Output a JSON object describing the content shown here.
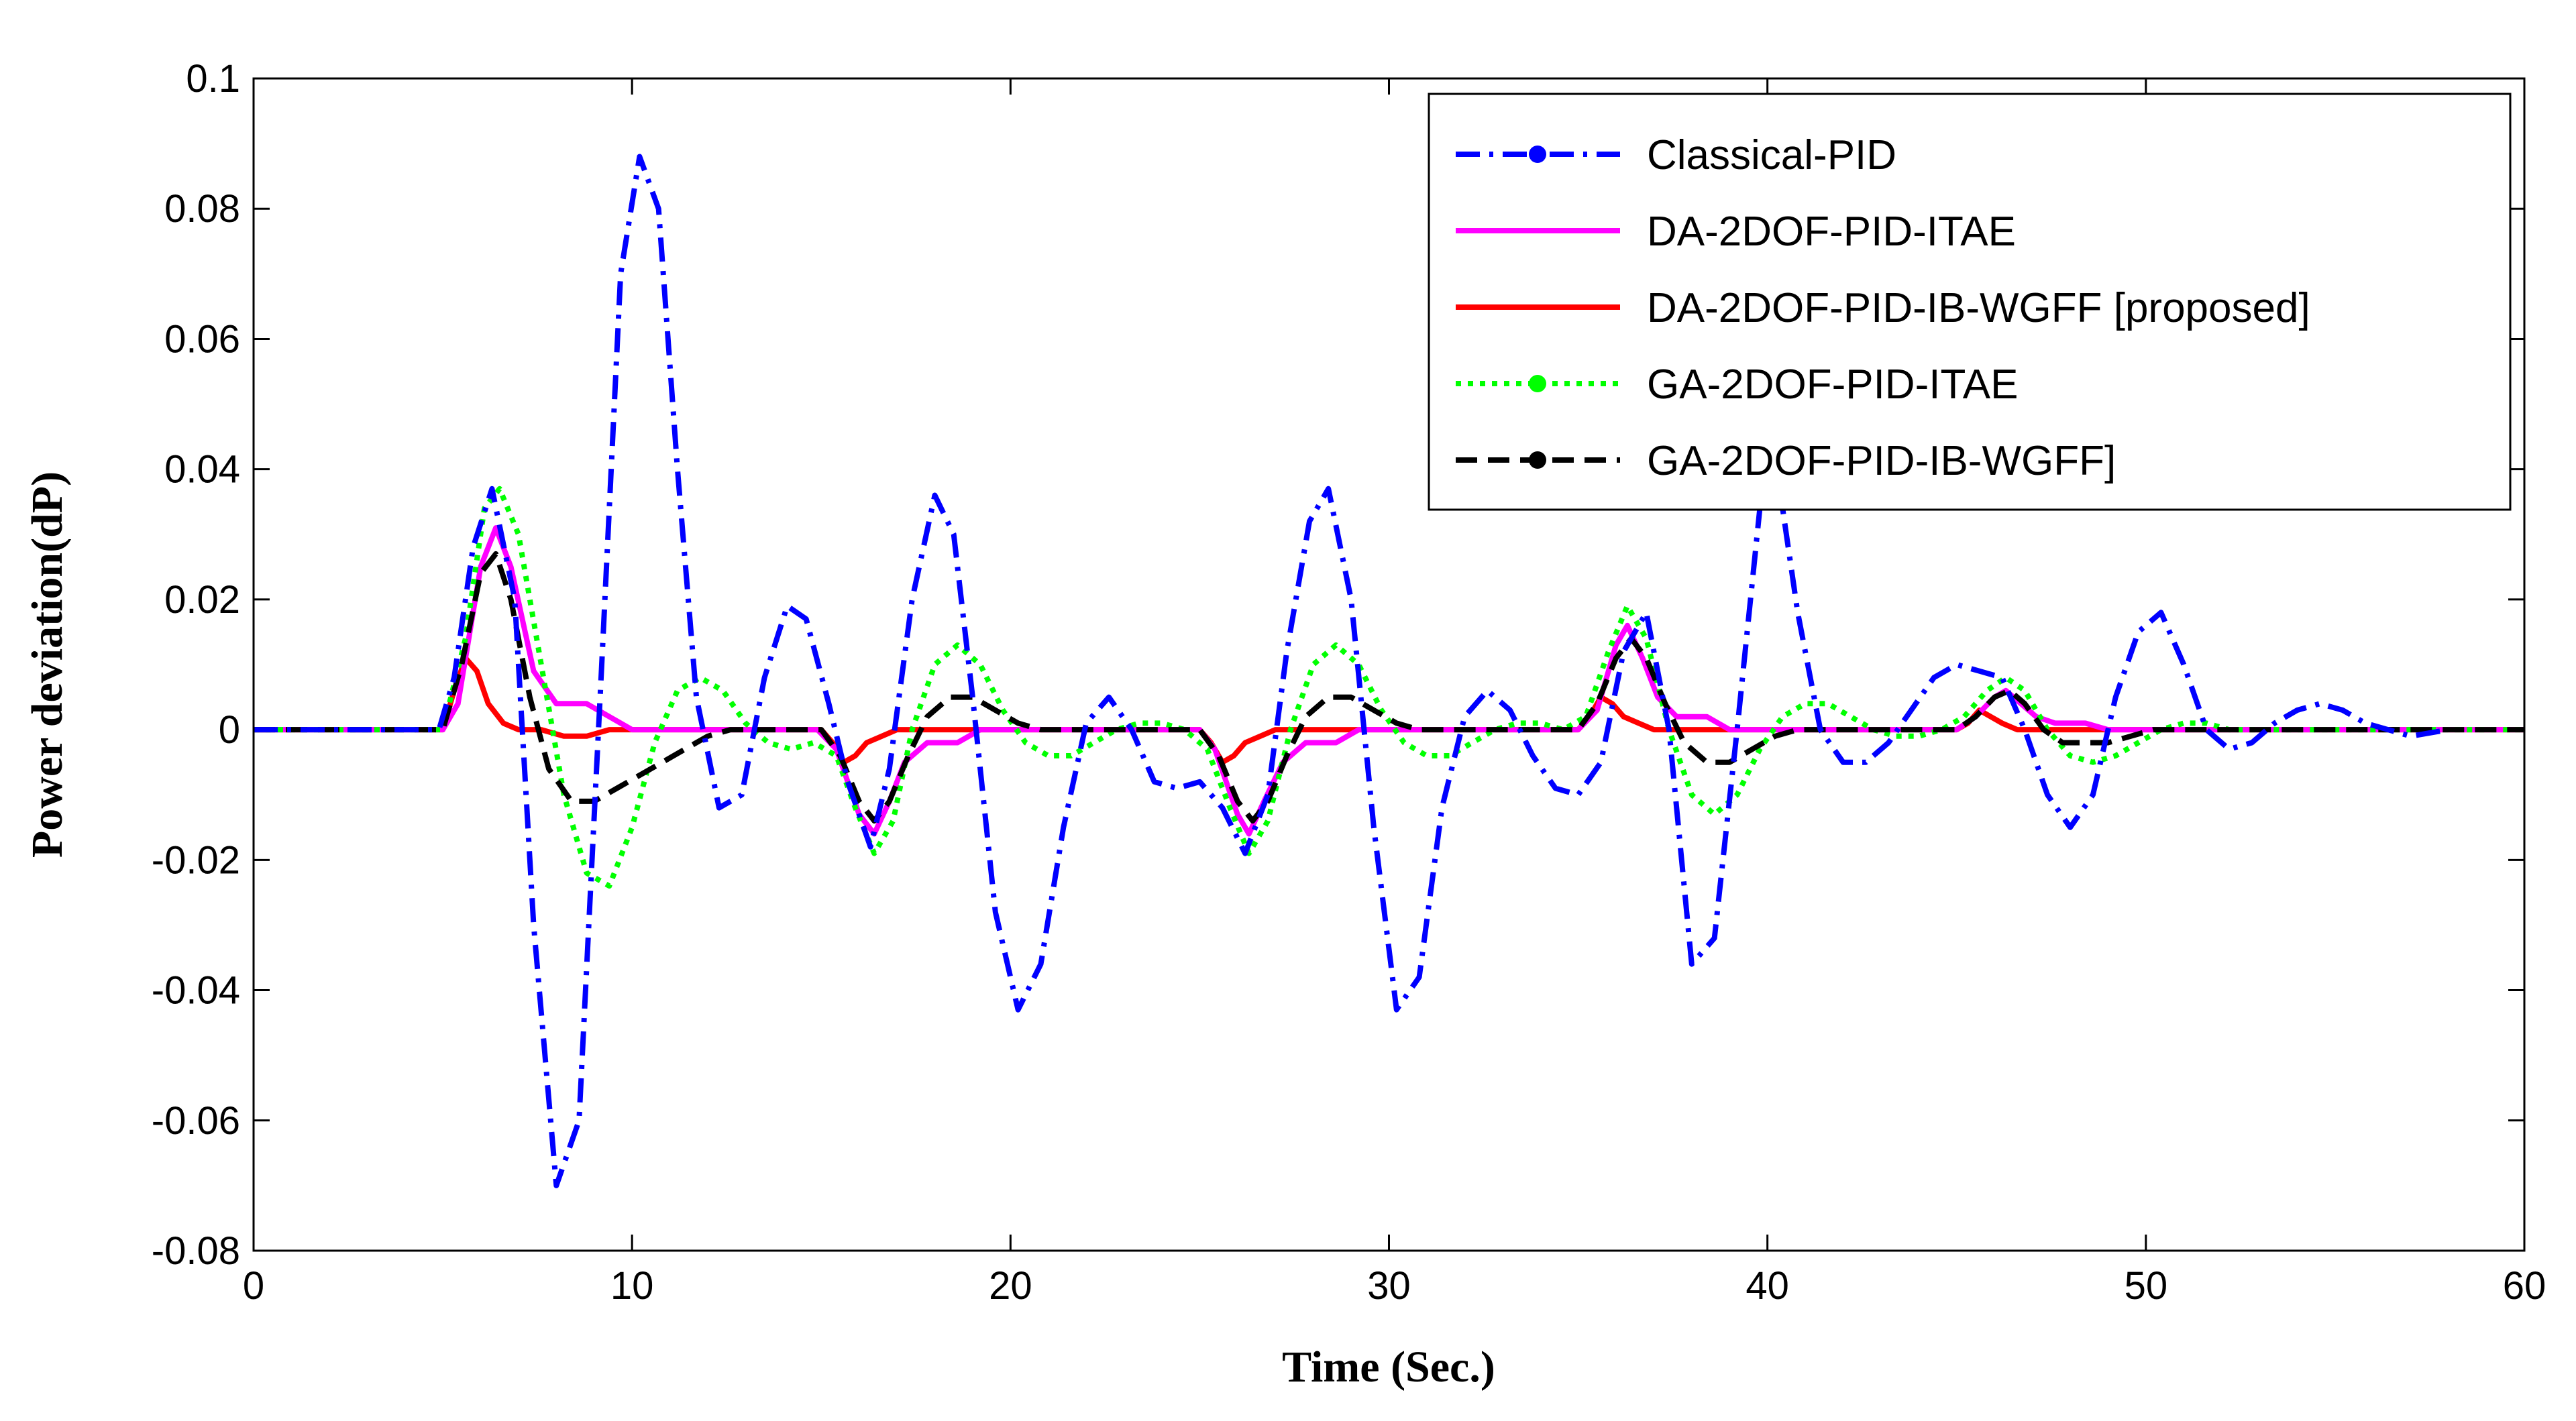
{
  "chart_data": {
    "type": "line",
    "title": "",
    "xlabel": "Time (Sec.)",
    "ylabel": "Power deviation(dP)",
    "xlim": [
      0,
      60
    ],
    "ylim": [
      -0.08,
      0.1
    ],
    "xticks": [
      0,
      10,
      20,
      30,
      40,
      50,
      60
    ],
    "xtick_labels": [
      "0",
      "10",
      "20",
      "30",
      "40",
      "50",
      "60"
    ],
    "yticks": [
      -0.08,
      -0.06,
      -0.04,
      -0.02,
      0,
      0.02,
      0.04,
      0.06,
      0.08,
      0.1
    ],
    "ytick_labels": [
      "-0.08",
      "-0.06",
      "-0.04",
      "-0.02",
      "0",
      "0.02",
      "0.04",
      "0.06",
      "0.08",
      "0.1"
    ],
    "grid": false,
    "legend_position": "top-right",
    "series": [
      {
        "name": "Classical-PID",
        "color": "#0000ff",
        "style": "dashdot",
        "marker": "dot",
        "x": [
          0,
          4.9,
          5.3,
          5.8,
          6.3,
          6.9,
          7.4,
          8.0,
          8.6,
          9.2,
          9.7,
          10.2,
          10.7,
          11.2,
          11.7,
          12.3,
          12.9,
          13.5,
          14.1,
          14.6,
          15.2,
          15.7,
          16.3,
          16.8,
          17.4,
          18.0,
          18.5,
          19.0,
          19.6,
          20.2,
          20.8,
          21.4,
          22.0,
          22.6,
          23.2,
          23.8,
          24.4,
          25.0,
          25.6,
          26.2,
          26.8,
          27.3,
          27.9,
          28.4,
          29.0,
          29.6,
          30.2,
          30.8,
          31.4,
          32.0,
          32.6,
          33.2,
          33.8,
          34.4,
          35.0,
          35.6,
          36.2,
          36.8,
          37.4,
          38.0,
          38.6,
          39.2,
          39.8,
          40.3,
          40.8,
          41.4,
          42.0,
          42.6,
          43.2,
          43.8,
          44.4,
          45.0,
          45.6,
          46.2,
          46.8,
          47.4,
          48.0,
          48.6,
          49.2,
          49.8,
          50.4,
          51.0,
          51.6,
          52.2,
          52.8,
          53.4,
          54.0,
          54.6,
          55.2,
          55.8,
          56.4,
          57.0,
          58.0
        ],
        "y": [
          0,
          0,
          0.008,
          0.028,
          0.037,
          0.02,
          -0.03,
          -0.07,
          -0.06,
          0.01,
          0.07,
          0.088,
          0.08,
          0.04,
          0.005,
          -0.012,
          -0.01,
          0.008,
          0.019,
          0.017,
          0.004,
          -0.008,
          -0.018,
          -0.006,
          0.02,
          0.036,
          0.03,
          0.005,
          -0.028,
          -0.043,
          -0.036,
          -0.015,
          0.001,
          0.005,
          0.0,
          -0.008,
          -0.009,
          -0.008,
          -0.012,
          -0.019,
          -0.01,
          0.012,
          0.032,
          0.037,
          0.02,
          -0.015,
          -0.043,
          -0.038,
          -0.012,
          0.002,
          0.006,
          0.003,
          -0.004,
          -0.009,
          -0.01,
          -0.005,
          0.012,
          0.018,
          0.0,
          -0.036,
          -0.032,
          0.0,
          0.034,
          0.038,
          0.018,
          0.0,
          -0.005,
          -0.005,
          -0.002,
          0.003,
          0.008,
          0.01,
          0.009,
          0.008,
          0.0,
          -0.01,
          -0.015,
          -0.01,
          0.005,
          0.015,
          0.018,
          0.01,
          0.0,
          -0.003,
          -0.002,
          0.001,
          0.003,
          0.004,
          0.003,
          0.001,
          0.0,
          -0.001,
          0.0
        ]
      },
      {
        "name": "DA-2DOF-PID-ITAE",
        "color": "#ff00ff",
        "style": "solid",
        "marker": "none",
        "x": [
          0,
          5.0,
          5.4,
          6.0,
          6.4,
          6.8,
          7.4,
          8.0,
          8.8,
          9.4,
          10.0,
          14.9,
          15.4,
          16.0,
          16.4,
          16.8,
          17.2,
          17.8,
          18.6,
          19.2,
          25.0,
          25.4,
          26.0,
          26.3,
          26.7,
          27.2,
          27.8,
          28.6,
          29.2,
          35.0,
          35.5,
          36.0,
          36.3,
          36.7,
          37.1,
          37.6,
          38.4,
          39.0,
          45.0,
          45.5,
          46.0,
          46.3,
          46.7,
          47.1,
          47.6,
          48.4,
          49.0,
          60.0
        ],
        "y": [
          0,
          0,
          0.004,
          0.025,
          0.031,
          0.025,
          0.009,
          0.004,
          0.004,
          0.002,
          0.0,
          0.0,
          -0.003,
          -0.013,
          -0.016,
          -0.011,
          -0.005,
          -0.002,
          -0.002,
          0.0,
          0.0,
          -0.003,
          -0.013,
          -0.016,
          -0.011,
          -0.005,
          -0.002,
          -0.002,
          0.0,
          0.0,
          0.003,
          0.013,
          0.016,
          0.011,
          0.005,
          0.002,
          0.002,
          0.0,
          0.0,
          0.002,
          0.005,
          0.006,
          0.004,
          0.002,
          0.001,
          0.001,
          0.0,
          0.0
        ]
      },
      {
        "name": "DA-2DOF-PID-IB-WGFF [proposed]",
        "color": "#ff0000",
        "style": "solid",
        "marker": "none",
        "x": [
          0,
          5.0,
          5.3,
          5.6,
          5.9,
          6.2,
          6.6,
          7.0,
          7.6,
          8.2,
          8.8,
          9.4,
          15.0,
          15.3,
          15.6,
          15.9,
          16.2,
          16.6,
          17.0,
          17.6,
          25.0,
          25.3,
          25.6,
          25.9,
          26.2,
          26.6,
          27.0,
          27.6,
          35.0,
          35.3,
          35.6,
          35.9,
          36.2,
          36.6,
          37.0,
          37.6,
          45.0,
          45.3,
          45.6,
          45.9,
          46.2,
          46.6,
          47.0,
          47.6,
          60.0
        ],
        "y": [
          0,
          0,
          0.006,
          0.011,
          0.009,
          0.004,
          0.001,
          0.0,
          0.0,
          -0.001,
          -0.001,
          0.0,
          0.0,
          -0.002,
          -0.005,
          -0.004,
          -0.002,
          -0.001,
          0.0,
          0.0,
          0.0,
          -0.002,
          -0.005,
          -0.004,
          -0.002,
          -0.001,
          0.0,
          0.0,
          0.0,
          0.002,
          0.005,
          0.004,
          0.002,
          0.001,
          0.0,
          0.0,
          0.0,
          0.001,
          0.003,
          0.002,
          0.001,
          0.0,
          0.0,
          0.0,
          0.0
        ]
      },
      {
        "name": "GA-2DOF-PID-ITAE",
        "color": "#00ff00",
        "style": "dotted",
        "marker": "dot",
        "x": [
          0,
          5.0,
          5.6,
          6.1,
          6.5,
          7.0,
          7.6,
          8.2,
          8.8,
          9.4,
          10.0,
          10.6,
          11.2,
          11.8,
          12.4,
          13.0,
          13.6,
          14.2,
          14.8,
          15.4,
          15.9,
          16.4,
          16.9,
          17.4,
          18.0,
          18.6,
          19.2,
          19.8,
          20.4,
          21.0,
          21.6,
          22.2,
          22.8,
          23.4,
          24.0,
          24.6,
          25.2,
          25.8,
          26.3,
          26.8,
          27.4,
          28.0,
          28.6,
          29.2,
          29.8,
          30.4,
          31.0,
          31.6,
          32.2,
          32.8,
          33.4,
          34.0,
          34.6,
          35.2,
          35.8,
          36.3,
          36.8,
          37.4,
          38.0,
          38.6,
          39.2,
          39.8,
          40.4,
          41.0,
          41.6,
          42.2,
          42.8,
          43.4,
          44.0,
          44.6,
          45.2,
          45.8,
          46.3,
          46.8,
          47.4,
          48.0,
          48.6,
          49.2,
          49.8,
          50.4,
          51.0,
          51.6,
          52.2,
          52.8,
          53.4,
          54.0,
          60.0
        ],
        "y": [
          0,
          0,
          0.014,
          0.034,
          0.037,
          0.03,
          0.01,
          -0.01,
          -0.022,
          -0.024,
          -0.015,
          -0.002,
          0.006,
          0.008,
          0.006,
          0.001,
          -0.002,
          -0.003,
          -0.002,
          -0.004,
          -0.012,
          -0.019,
          -0.014,
          0.0,
          0.01,
          0.013,
          0.01,
          0.003,
          -0.002,
          -0.004,
          -0.004,
          -0.002,
          0.0,
          0.001,
          0.001,
          0.0,
          -0.003,
          -0.012,
          -0.019,
          -0.014,
          0.0,
          0.01,
          0.013,
          0.01,
          0.003,
          -0.002,
          -0.004,
          -0.004,
          -0.002,
          0.0,
          0.001,
          0.001,
          0.0,
          0.002,
          0.012,
          0.019,
          0.014,
          0.0,
          -0.01,
          -0.013,
          -0.01,
          -0.003,
          0.002,
          0.004,
          0.004,
          0.002,
          0.0,
          -0.001,
          -0.001,
          0.0,
          0.002,
          0.006,
          0.008,
          0.006,
          0.0,
          -0.004,
          -0.005,
          -0.004,
          -0.002,
          0.0,
          0.001,
          0.001,
          0.0,
          0.0,
          0.0,
          0.0,
          0.0
        ]
      },
      {
        "name": "GA-2DOF-PID-IB-WGFF]",
        "color": "#000000",
        "style": "dashed",
        "marker": "dot",
        "x": [
          0,
          5.0,
          5.5,
          6.0,
          6.4,
          6.8,
          7.3,
          7.8,
          8.4,
          9.0,
          9.6,
          10.2,
          10.8,
          11.4,
          12.0,
          12.6,
          13.2,
          15.0,
          15.5,
          16.0,
          16.4,
          16.8,
          17.3,
          17.8,
          18.4,
          19.0,
          19.6,
          20.2,
          20.8,
          21.4,
          25.0,
          25.5,
          26.0,
          26.4,
          26.8,
          27.3,
          27.8,
          28.4,
          29.0,
          29.6,
          30.2,
          30.8,
          31.4,
          35.0,
          35.5,
          36.0,
          36.4,
          36.8,
          37.3,
          37.8,
          38.4,
          39.0,
          39.6,
          40.2,
          40.8,
          41.4,
          45.0,
          45.5,
          46.0,
          46.4,
          46.8,
          47.3,
          47.8,
          48.4,
          49.0,
          49.6,
          50.2,
          60.0
        ],
        "y": [
          0,
          0,
          0.01,
          0.024,
          0.027,
          0.02,
          0.005,
          -0.006,
          -0.011,
          -0.011,
          -0.009,
          -0.007,
          -0.005,
          -0.003,
          -0.001,
          0.0,
          0.0,
          0.0,
          -0.004,
          -0.011,
          -0.014,
          -0.011,
          -0.004,
          0.002,
          0.005,
          0.005,
          0.003,
          0.001,
          0.0,
          0.0,
          0.0,
          -0.004,
          -0.011,
          -0.014,
          -0.011,
          -0.004,
          0.002,
          0.005,
          0.005,
          0.003,
          0.001,
          0.0,
          0.0,
          0.0,
          0.004,
          0.011,
          0.014,
          0.011,
          0.004,
          -0.002,
          -0.005,
          -0.005,
          -0.003,
          -0.001,
          0.0,
          0.0,
          0.0,
          0.002,
          0.005,
          0.006,
          0.004,
          0.0,
          -0.002,
          -0.002,
          -0.002,
          -0.001,
          0.0,
          0.0
        ]
      }
    ]
  }
}
